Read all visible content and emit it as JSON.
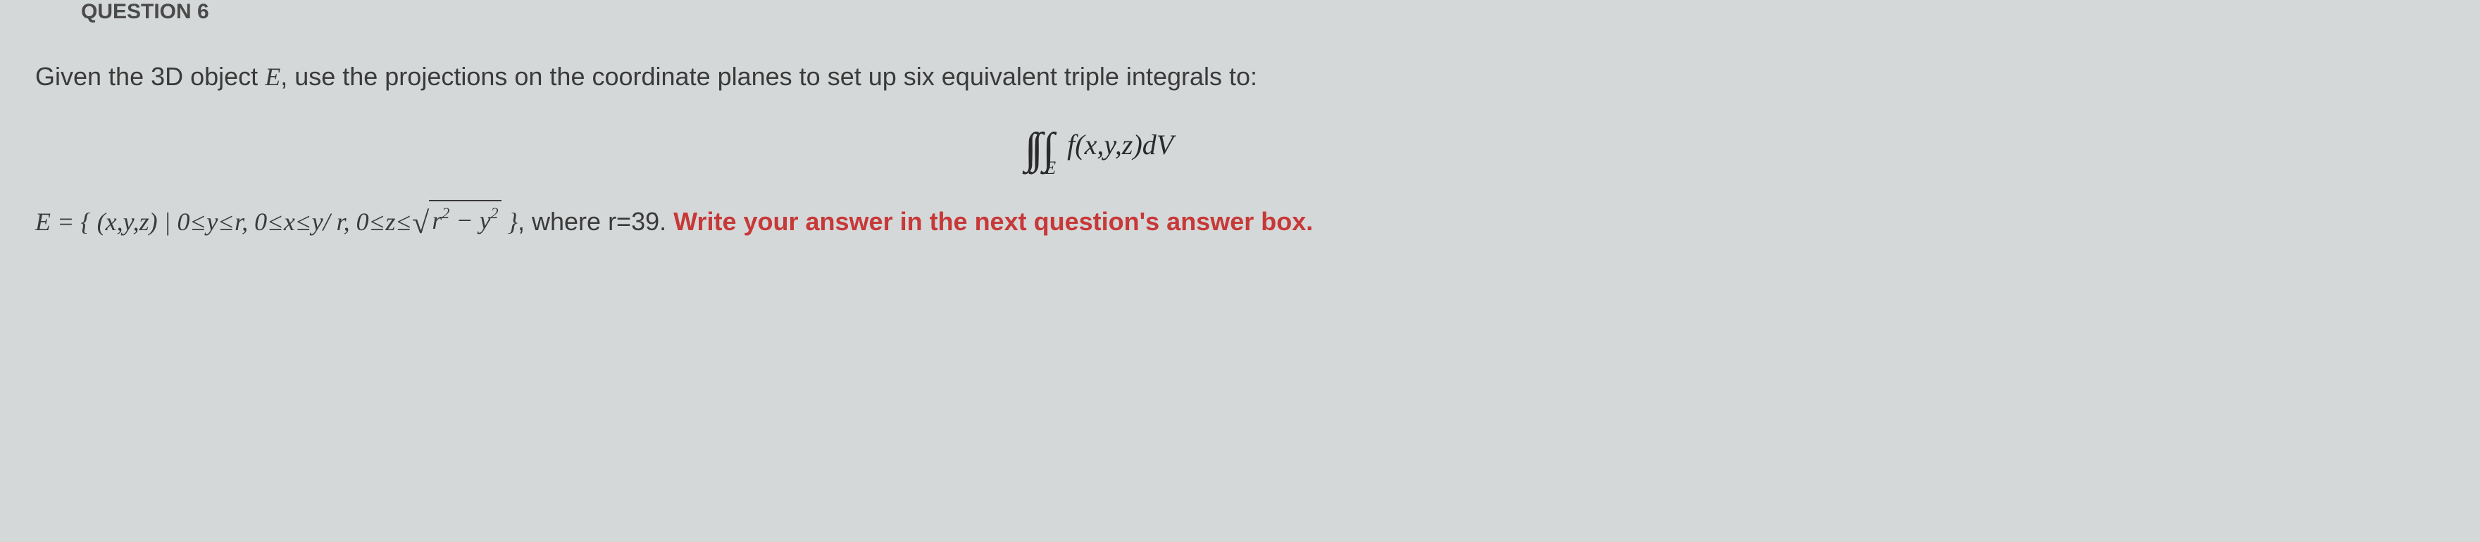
{
  "header": {
    "question_label": "QUESTION 6"
  },
  "intro": {
    "prefix": "Given the 3D object ",
    "object_name": "E",
    "suffix": ", use the projections on the coordinate planes to set up six equivalent triple integrals to:"
  },
  "formula": {
    "integral_symbols": "∫∫ ∫",
    "subscript": "E",
    "integrand": "f(x,y,z)dV"
  },
  "definition": {
    "lhs": "E = { (x,y,z) | ",
    "cond1_a": "0",
    "le": "≤",
    "cond1_b": "y",
    "cond1_c": "r",
    "sep": ", ",
    "cond2_a": "0",
    "cond2_b": "x",
    "cond2_c": "y/ r",
    "cond3_a": "0",
    "cond3_b": "z",
    "sqrt_inner_a": "r",
    "sqrt_exp": "2",
    "sqrt_minus": " − ",
    "sqrt_inner_b": "y",
    "close": " }",
    "where_text": ", where r=39. ",
    "highlight": "Write your answer in the next question's answer box."
  },
  "colors": {
    "background": "#d5d8d8",
    "text": "#3a3a3a",
    "highlight": "#c73838"
  }
}
